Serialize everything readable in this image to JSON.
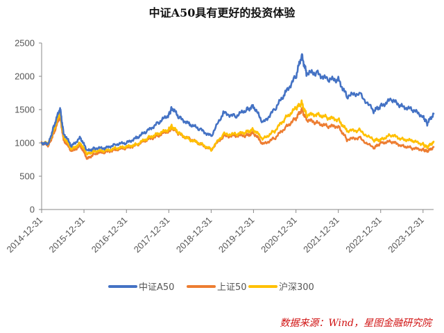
{
  "colors": {
    "a50": "#4472c4",
    "sz50": "#ed7d31",
    "hs300": "#ffc000",
    "axis": "#888888",
    "source": "#d01010"
  },
  "source_text": "数据来源：Wind，星图金融研究院",
  "chart_data": {
    "type": "line",
    "title": "中证A50具有更好的投资体验",
    "xlabel": "",
    "ylabel": "",
    "ylim": [
      0,
      2500
    ],
    "yticks": [
      "0",
      "500",
      "1000",
      "1500",
      "2000",
      "2500"
    ],
    "xlim": [
      "2014-12-31",
      "2024-03-31"
    ],
    "xticks": [
      "2014-12-31",
      "2015-12-31",
      "2016-12-31",
      "2017-12-31",
      "2018-12-31",
      "2019-12-31",
      "2020-12-31",
      "2021-12-31",
      "2022-12-31",
      "2023-12-31"
    ],
    "grid": false,
    "legend_position": "bottom",
    "x": [
      "2014-12-31",
      "2015-02-28",
      "2015-04-15",
      "2015-06-08",
      "2015-07-08",
      "2015-09-15",
      "2015-11-30",
      "2016-01-28",
      "2016-03-31",
      "2016-06-30",
      "2016-09-30",
      "2016-12-31",
      "2017-03-31",
      "2017-06-30",
      "2017-09-30",
      "2017-12-31",
      "2018-01-26",
      "2018-03-31",
      "2018-06-30",
      "2018-09-30",
      "2018-12-31",
      "2019-04-15",
      "2019-07-31",
      "2019-10-31",
      "2019-12-31",
      "2020-03-23",
      "2020-06-30",
      "2020-09-30",
      "2020-12-31",
      "2021-02-18",
      "2021-03-31",
      "2021-06-30",
      "2021-09-30",
      "2021-12-31",
      "2022-03-15",
      "2022-06-30",
      "2022-10-31",
      "2022-12-31",
      "2023-03-31",
      "2023-06-30",
      "2023-09-30",
      "2023-12-31",
      "2024-02-05",
      "2024-03-31"
    ],
    "series": [
      {
        "name": "中证A50",
        "color_key": "a50",
        "values": [
          1000,
          980,
          1250,
          1520,
          1150,
          950,
          1080,
          880,
          920,
          920,
          980,
          1000,
          1080,
          1180,
          1300,
          1420,
          1530,
          1380,
          1280,
          1200,
          1100,
          1450,
          1400,
          1500,
          1550,
          1300,
          1500,
          1750,
          2000,
          2320,
          2050,
          2050,
          1950,
          1950,
          1700,
          1750,
          1480,
          1550,
          1650,
          1550,
          1500,
          1400,
          1290,
          1440
        ]
      },
      {
        "name": "上证50",
        "color_key": "sz50",
        "values": [
          1000,
          960,
          1150,
          1400,
          1050,
          870,
          960,
          760,
          840,
          860,
          900,
          920,
          970,
          1050,
          1110,
          1180,
          1230,
          1130,
          1060,
          980,
          900,
          1100,
          1110,
          1110,
          1150,
          980,
          1070,
          1230,
          1370,
          1500,
          1350,
          1300,
          1250,
          1250,
          1050,
          1080,
          920,
          1000,
          1020,
          960,
          920,
          900,
          870,
          940
        ]
      },
      {
        "name": "沪深300",
        "color_key": "hs300",
        "values": [
          1000,
          990,
          1200,
          1450,
          1100,
          900,
          1000,
          830,
          880,
          880,
          920,
          940,
          980,
          1070,
          1140,
          1200,
          1250,
          1140,
          1050,
          990,
          900,
          1130,
          1130,
          1160,
          1200,
          1060,
          1180,
          1370,
          1520,
          1600,
          1420,
          1430,
          1380,
          1350,
          1180,
          1190,
          1040,
          1050,
          1120,
          1060,
          1030,
          980,
          930,
          1020
        ]
      }
    ]
  }
}
